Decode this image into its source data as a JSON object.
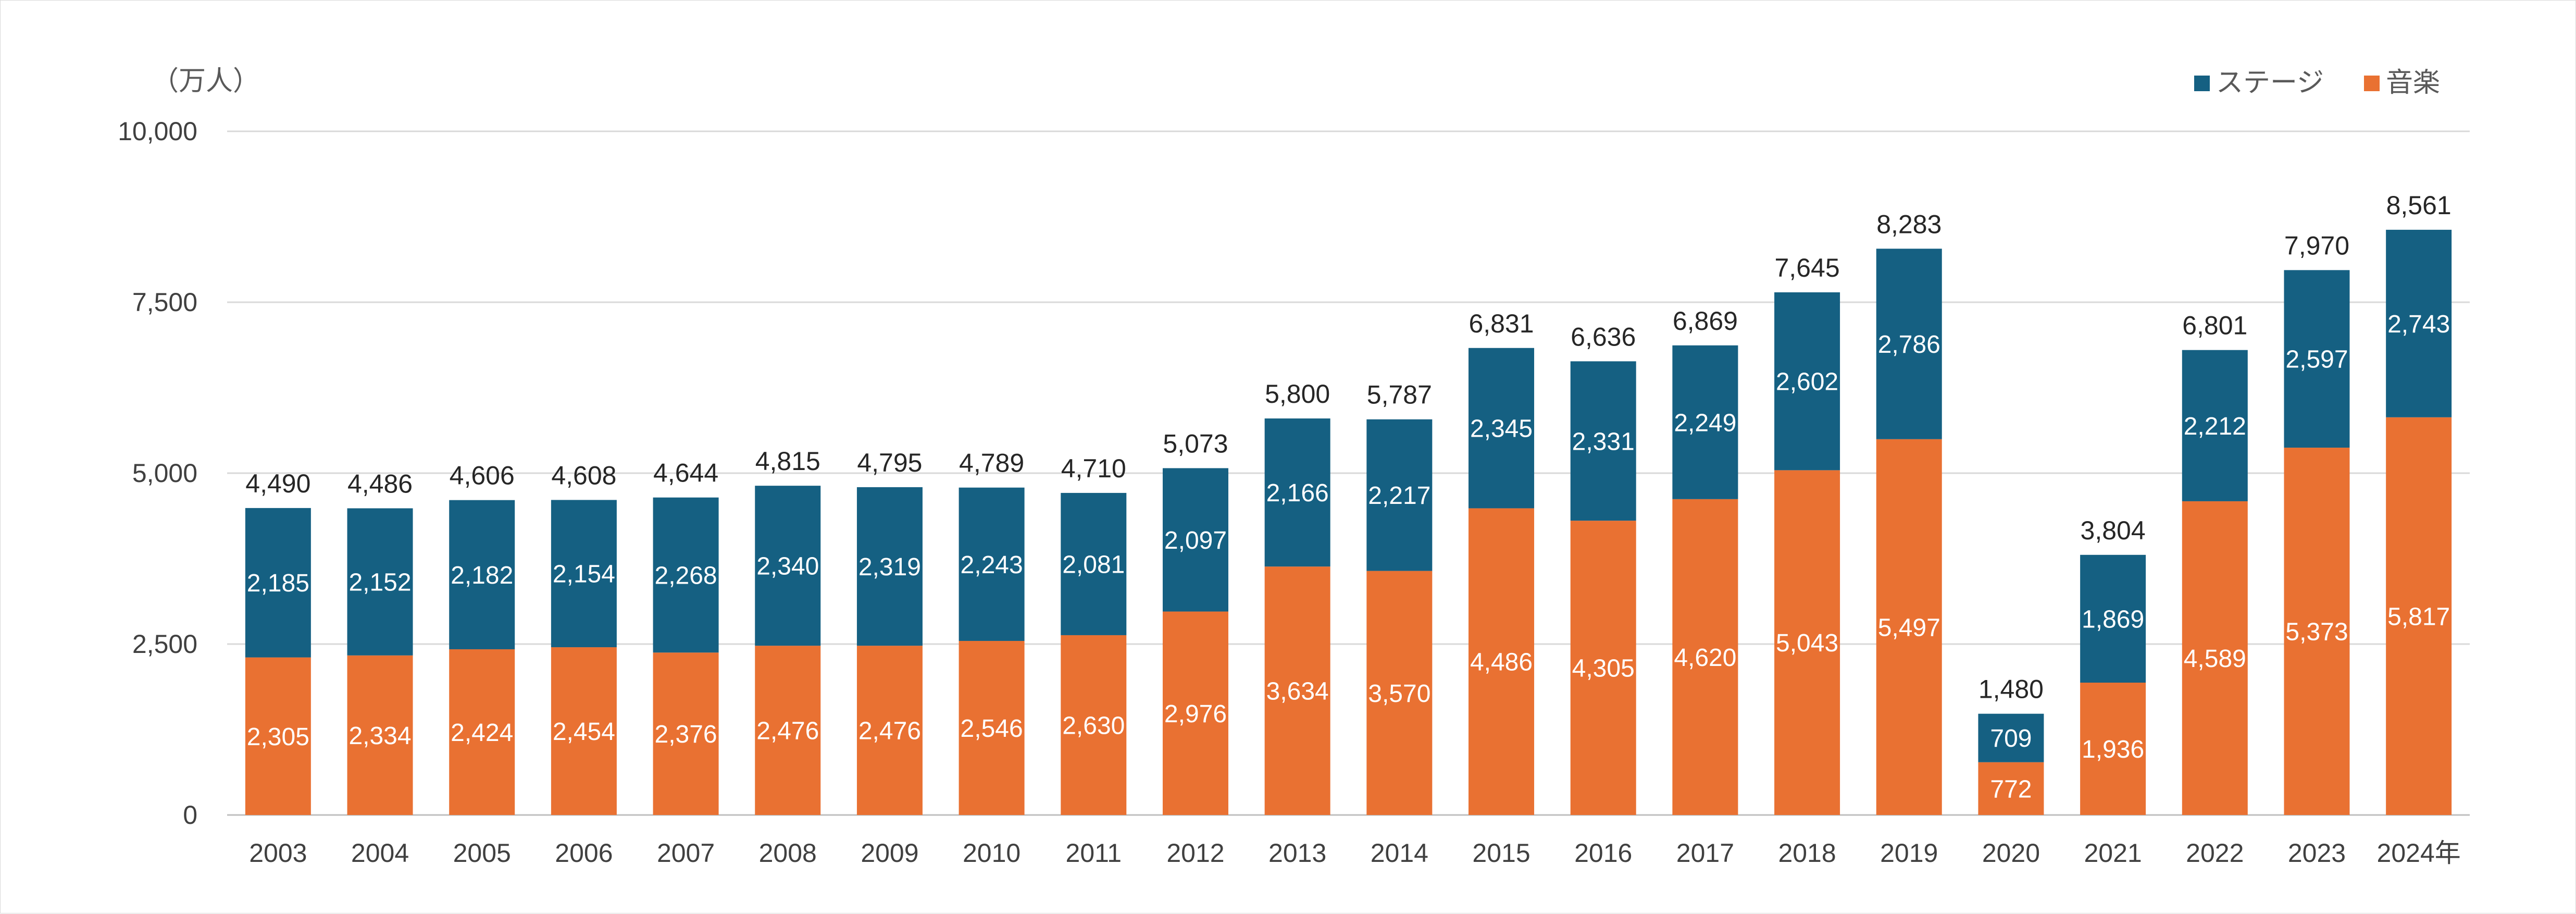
{
  "chart_data": {
    "type": "bar",
    "stacked": true,
    "unit_label": "（万人）",
    "categories": [
      "2003",
      "2004",
      "2005",
      "2006",
      "2007",
      "2008",
      "2009",
      "2010",
      "2011",
      "2012",
      "2013",
      "2014",
      "2015",
      "2016",
      "2017",
      "2018",
      "2019",
      "2020",
      "2021",
      "2022",
      "2023",
      "2024年"
    ],
    "series": [
      {
        "name": "音楽",
        "color": "#E97132",
        "values": [
          2305,
          2334,
          2424,
          2454,
          2376,
          2476,
          2476,
          2546,
          2630,
          2976,
          3634,
          3570,
          4486,
          4305,
          4620,
          5043,
          5497,
          772,
          1936,
          4589,
          5373,
          5817
        ],
        "labels": [
          "2,305",
          "2,334",
          "2,424",
          "2,454",
          "2,376",
          "2,476",
          "2,476",
          "2,546",
          "2,630",
          "2,976",
          "3,634",
          "3,570",
          "4,486",
          "4,305",
          "4,620",
          "5,043",
          "5,497",
          "772",
          "1,936",
          "4,589",
          "5,373",
          "5,817"
        ]
      },
      {
        "name": "ステージ",
        "color": "#156082",
        "values": [
          2185,
          2152,
          2182,
          2154,
          2268,
          2340,
          2319,
          2243,
          2081,
          2097,
          2166,
          2217,
          2345,
          2331,
          2249,
          2602,
          2786,
          709,
          1869,
          2212,
          2597,
          2743
        ],
        "labels": [
          "2,185",
          "2,152",
          "2,182",
          "2,154",
          "2,268",
          "2,340",
          "2,319",
          "2,243",
          "2,081",
          "2,097",
          "2,166",
          "2,217",
          "2,345",
          "2,331",
          "2,249",
          "2,602",
          "2,786",
          "709",
          "1,869",
          "2,212",
          "2,597",
          "2,743"
        ]
      }
    ],
    "totals": [
      4490,
      4486,
      4606,
      4608,
      4644,
      4815,
      4795,
      4789,
      4710,
      5073,
      5800,
      5787,
      6831,
      6636,
      6869,
      7645,
      8283,
      1480,
      3804,
      6801,
      7970,
      8561
    ],
    "total_labels": [
      "4,490",
      "4,486",
      "4,606",
      "4,608",
      "4,644",
      "4,815",
      "4,795",
      "4,789",
      "4,710",
      "5,073",
      "5,800",
      "5,787",
      "6,831",
      "6,636",
      "6,869",
      "7,645",
      "8,283",
      "1,480",
      "3,804",
      "6,801",
      "7,970",
      "8,561"
    ],
    "ylim": [
      0,
      10000
    ],
    "yticks": [
      0,
      2500,
      5000,
      7500,
      10000
    ],
    "ytick_labels": [
      "0",
      "2,500",
      "5,000",
      "7,500",
      "10,000"
    ],
    "grid": true,
    "legend_position": "top-right",
    "legend": [
      "ステージ",
      "音楽"
    ]
  }
}
